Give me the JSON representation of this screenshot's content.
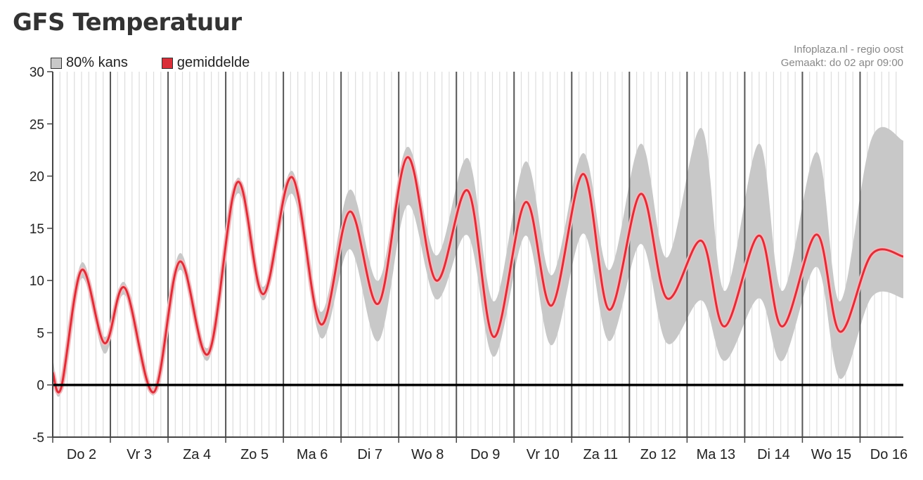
{
  "title": "GFS Temperatuur",
  "credit": {
    "source": "Infoplaza.nl - regio oost",
    "made": "Gemaakt: do 02 apr 09:00"
  },
  "colors": {
    "band": "#c8c8c8",
    "mean": "#d9303a",
    "zero_line": "#000000",
    "day_line": "#555555",
    "grid": "#dddddd"
  },
  "chart_data": {
    "type": "area",
    "title": "GFS Temperatuur",
    "xlabel": "",
    "ylabel": "",
    "ylim": [
      -5,
      30
    ],
    "yticks": [
      -5,
      0,
      5,
      10,
      15,
      20,
      25,
      30
    ],
    "xlim": [
      0,
      14.75
    ],
    "categories": [
      "Do 2",
      "Vr 3",
      "Za 4",
      "Zo 5",
      "Ma 6",
      "Di 7",
      "Wo 8",
      "Do 9",
      "Vr 10",
      "Za 11",
      "Zo 12",
      "Ma 13",
      "Di 14",
      "Wo 15",
      "Do 16"
    ],
    "legend": [
      "80% kans",
      "gemiddelde"
    ],
    "legend_position": "top-left",
    "grid": true,
    "series": [
      {
        "name": "gemiddelde",
        "x": [
          0.0,
          0.15,
          0.5,
          0.9,
          1.25,
          1.75,
          2.2,
          2.7,
          3.2,
          3.65,
          4.15,
          4.65,
          5.15,
          5.65,
          6.15,
          6.65,
          7.2,
          7.65,
          8.2,
          8.65,
          9.2,
          9.65,
          10.2,
          10.65,
          11.25,
          11.65,
          12.25,
          12.65,
          13.25,
          13.65,
          14.2,
          14.75
        ],
        "values": [
          1.2,
          -0.2,
          11,
          4,
          9.3,
          -0.7,
          11.8,
          3.0,
          19.4,
          8.7,
          19.9,
          5.8,
          16.6,
          7.8,
          21.8,
          10.0,
          18.6,
          4.6,
          17.5,
          7.6,
          20.2,
          7.2,
          18.3,
          8.3,
          13.8,
          5.6,
          14.3,
          5.6,
          14.4,
          5.1,
          12.5,
          12.3
        ]
      },
      {
        "name": "80% kans",
        "x": [
          0.0,
          0.15,
          0.5,
          0.9,
          1.25,
          1.75,
          2.2,
          2.7,
          3.2,
          3.65,
          4.15,
          4.65,
          5.15,
          5.65,
          6.15,
          6.65,
          7.2,
          7.65,
          8.2,
          8.65,
          9.2,
          9.65,
          10.2,
          10.65,
          11.25,
          11.65,
          12.25,
          12.65,
          13.25,
          13.65,
          14.2,
          14.75
        ],
        "upper": [
          2.5,
          0.3,
          11.7,
          4.6,
          9.8,
          -0.2,
          12.6,
          3.6,
          19.8,
          9.4,
          20.5,
          7.0,
          18.7,
          10.0,
          22.8,
          12.4,
          21.7,
          8.0,
          21.4,
          10.5,
          22.2,
          11.0,
          23.1,
          12.2,
          24.6,
          9.0,
          23.1,
          9.0,
          22.3,
          8.0,
          23.6,
          23.4
        ],
        "lower": [
          0.5,
          -0.6,
          10.2,
          3.0,
          8.6,
          -1.0,
          11.0,
          2.4,
          18.3,
          8.1,
          18.3,
          4.5,
          13.0,
          4.2,
          17.2,
          8.2,
          14.3,
          2.7,
          14.3,
          3.8,
          14.5,
          4.2,
          13.5,
          4.0,
          8.1,
          2.3,
          8.3,
          2.3,
          11.3,
          0.6,
          8.4,
          8.3
        ]
      }
    ]
  }
}
